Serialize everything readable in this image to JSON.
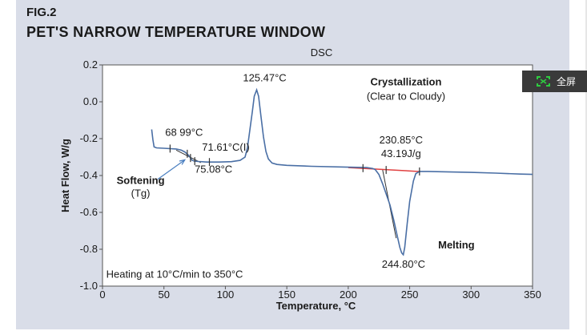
{
  "figure": {
    "label": "FIG.2",
    "title": "PET'S NARROW TEMPERATURE WINDOW"
  },
  "fullscreen": {
    "label": "全屏",
    "icon": "expand-icon"
  },
  "chart_data": {
    "type": "line",
    "title": "DSC",
    "xlabel": "Temperature, °C",
    "ylabel": "Heat Flow, W/g",
    "xlim": [
      0,
      350
    ],
    "ylim": [
      -1.0,
      0.2
    ],
    "xticks": [
      "0",
      "50",
      "100",
      "150",
      "200",
      "250",
      "300",
      "350"
    ],
    "yticks": [
      "0.2",
      "0.0",
      "-0.2",
      "-0.4",
      "-0.6",
      "-0.8",
      "-1.0"
    ],
    "grid": false,
    "colors": {
      "curve": "#4a6fa5",
      "baseline": "#e04040",
      "marker": "#333333",
      "arrow": "#4a7fc0"
    },
    "series": [
      {
        "x": [
          40,
          41,
          42,
          44,
          50,
          60,
          64,
          67,
          70,
          71.6,
          73,
          75.08,
          78,
          85,
          95,
          105,
          112,
          116,
          118,
          120,
          122,
          123.5,
          125.47,
          127,
          129,
          131,
          133,
          135,
          138,
          142,
          150,
          170,
          200,
          215,
          220,
          222,
          225,
          228,
          230.85,
          234,
          237,
          240,
          242,
          243.5,
          244.8,
          246,
          248,
          250,
          253,
          255,
          258,
          265,
          280,
          300,
          320,
          340,
          350
        ],
        "y": [
          -0.15,
          -0.205,
          -0.245,
          -0.25,
          -0.252,
          -0.256,
          -0.262,
          -0.272,
          -0.29,
          -0.305,
          -0.318,
          -0.322,
          -0.324,
          -0.327,
          -0.327,
          -0.325,
          -0.318,
          -0.3,
          -0.25,
          -0.15,
          -0.05,
          0.03,
          0.065,
          0.03,
          -0.08,
          -0.19,
          -0.27,
          -0.31,
          -0.332,
          -0.34,
          -0.345,
          -0.35,
          -0.355,
          -0.357,
          -0.362,
          -0.368,
          -0.395,
          -0.445,
          -0.5,
          -0.56,
          -0.64,
          -0.73,
          -0.79,
          -0.82,
          -0.83,
          -0.79,
          -0.66,
          -0.54,
          -0.43,
          -0.39,
          -0.378,
          -0.378,
          -0.38,
          -0.383,
          -0.387,
          -0.392,
          -0.394
        ]
      }
    ],
    "baseline": {
      "x": [
        200,
        258
      ],
      "y": [
        -0.357,
        -0.378
      ]
    },
    "markers": [
      {
        "x": 55,
        "y": -0.254
      },
      {
        "x": 68.99,
        "y": -0.282
      },
      {
        "x": 71.61,
        "y": -0.305
      },
      {
        "x": 75.08,
        "y": -0.322
      },
      {
        "x": 87,
        "y": -0.327
      },
      {
        "x": 212,
        "y": -0.36
      },
      {
        "x": 230.85,
        "y": -0.37
      },
      {
        "x": 258,
        "y": -0.378
      }
    ],
    "annotations": [
      {
        "text": "125.47°C",
        "x": 132,
        "y": 0.11,
        "anchor": "middle",
        "weight": "normal"
      },
      {
        "text": "Crystallization",
        "x": 247,
        "y": 0.09,
        "anchor": "middle",
        "weight": "bold"
      },
      {
        "text": "(Clear to Cloudy)",
        "x": 247,
        "y": 0.01,
        "anchor": "middle",
        "weight": "normal"
      },
      {
        "text": "68 99°C",
        "x": 51,
        "y": -0.185,
        "anchor": "start",
        "weight": "normal"
      },
      {
        "text": "71.61°C(I)",
        "x": 81,
        "y": -0.265,
        "anchor": "start",
        "weight": "normal"
      },
      {
        "text": "75.08°C",
        "x": 75,
        "y": -0.385,
        "anchor": "start",
        "weight": "normal"
      },
      {
        "text": "Softening",
        "x": 31,
        "y": -0.445,
        "anchor": "middle",
        "weight": "bold"
      },
      {
        "text": "(Tg)",
        "x": 31,
        "y": -0.515,
        "anchor": "middle",
        "weight": "normal"
      },
      {
        "text": "230.85°C",
        "x": 243,
        "y": -0.225,
        "anchor": "middle",
        "weight": "normal"
      },
      {
        "text": "43.19J/g",
        "x": 243,
        "y": -0.3,
        "anchor": "middle",
        "weight": "normal"
      },
      {
        "text": "Melting",
        "x": 288,
        "y": -0.795,
        "anchor": "middle",
        "weight": "bold"
      },
      {
        "text": "244.80°C",
        "x": 245,
        "y": -0.9,
        "anchor": "middle",
        "weight": "normal"
      },
      {
        "text": "Heating at 10°C/min to 350°C",
        "x": 3,
        "y": -0.955,
        "anchor": "start",
        "weight": "normal"
      }
    ],
    "arrow": {
      "from": {
        "x": 45,
        "y": -0.42
      },
      "to": {
        "x": 67,
        "y": -0.315
      }
    }
  }
}
